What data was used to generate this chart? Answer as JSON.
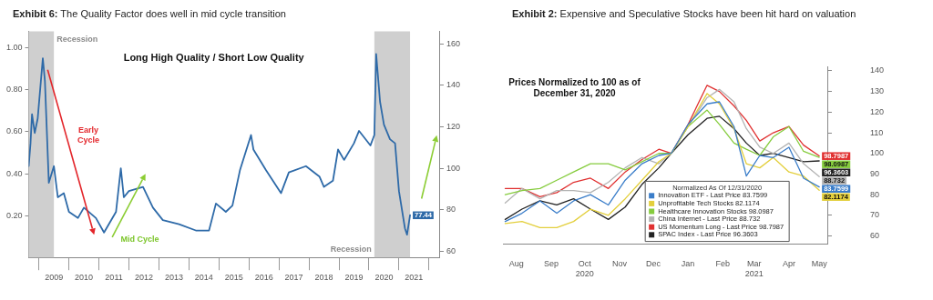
{
  "chart_data": [
    {
      "type": "line",
      "title": "Exhibit 6: The Quality Factor does well in mid cycle transition",
      "x": [
        2008.66,
        2008.72,
        2008.77,
        2008.86,
        2008.96,
        2009.13,
        2009.2,
        2009.33,
        2009.5,
        2009.63,
        2009.83,
        2010.0,
        2010.3,
        2010.5,
        2010.9,
        2011.17,
        2011.57,
        2011.73,
        2011.83,
        2012.0,
        2012.47,
        2012.8,
        2013.13,
        2013.67,
        2014.23,
        2014.67,
        2014.9,
        2015.23,
        2015.45,
        2015.7,
        2016.07,
        2016.15,
        2016.57,
        2017.07,
        2017.33,
        2017.9,
        2018.35,
        2018.5,
        2018.8,
        2018.97,
        2019.17,
        2019.5,
        2019.67,
        2020.05,
        2020.18,
        2020.24,
        2020.37,
        2020.5,
        2020.7,
        2020.87,
        2021.0,
        2021.2,
        2021.27,
        2021.37
      ],
      "series": [
        {
          "color": "#2e6aa8",
          "axis": "y2",
          "values": [
            101,
            112,
            126,
            117,
            124,
            153,
            142,
            93,
            101,
            86,
            88,
            79,
            76,
            81,
            76,
            69,
            79,
            100,
            86,
            89,
            91,
            81,
            75,
            73,
            70,
            70,
            83,
            79,
            82,
            99,
            116,
            109,
            99,
            88,
            98,
            101,
            96,
            91,
            94,
            109,
            104,
            112,
            118,
            111,
            116,
            155,
            132,
            121,
            114,
            112,
            89,
            71,
            68,
            77.44
          ],
          "value_labels": [
            null,
            null,
            null,
            null,
            null,
            null,
            null,
            null,
            null,
            null,
            null,
            null,
            null,
            null,
            null,
            null,
            null,
            null,
            null,
            null,
            null,
            null,
            null,
            null,
            null,
            null,
            null,
            null,
            null,
            null,
            null,
            null,
            null,
            null,
            null,
            null,
            null,
            null,
            null,
            null,
            null,
            null,
            null,
            null,
            null,
            null,
            null,
            null,
            null,
            null,
            null,
            null,
            null,
            "77.44"
          ]
        }
      ],
      "xlim": [
        2008.66,
        2022.37
      ],
      "xticks": [
        {
          "value": 2009,
          "label": null
        },
        {
          "value": 2009.5,
          "label": "2009"
        },
        {
          "value": 2010,
          "label": null
        },
        {
          "value": 2010.5,
          "label": "2010"
        },
        {
          "value": 2011,
          "label": null
        },
        {
          "value": 2011.5,
          "label": "2011"
        },
        {
          "value": 2012,
          "label": null
        },
        {
          "value": 2012.5,
          "label": "2012"
        },
        {
          "value": 2013,
          "label": null
        },
        {
          "value": 2013.5,
          "label": "2013"
        },
        {
          "value": 2014,
          "label": null
        },
        {
          "value": 2014.5,
          "label": "2014"
        },
        {
          "value": 2015,
          "label": null
        },
        {
          "value": 2015.5,
          "label": "2015"
        },
        {
          "value": 2016,
          "label": null
        },
        {
          "value": 2016.5,
          "label": "2016"
        },
        {
          "value": 2017,
          "label": null
        },
        {
          "value": 2017.5,
          "label": "2017"
        },
        {
          "value": 2018,
          "label": null
        },
        {
          "value": 2018.5,
          "label": "2018"
        },
        {
          "value": 2019,
          "label": null
        },
        {
          "value": 2019.5,
          "label": "2019"
        },
        {
          "value": 2020,
          "label": null
        },
        {
          "value": 2020.5,
          "label": "2020"
        },
        {
          "value": 2021,
          "label": null
        },
        {
          "value": 2021.5,
          "label": "2021"
        },
        {
          "value": 2022,
          "label": null
        }
      ],
      "ylim": [
        0,
        1.08
      ],
      "yticks": [
        {
          "value": 0.2,
          "label": "0.20"
        },
        {
          "value": 0.4,
          "label": "0.40"
        },
        {
          "value": 0.6,
          "label": "0.60"
        },
        {
          "value": 0.8,
          "label": "0.80"
        },
        {
          "value": 1,
          "label": "1.00"
        }
      ],
      "y2lim": [
        57,
        166
      ],
      "y2ticks": [
        60,
        80,
        100,
        120,
        140,
        160
      ],
      "bands": [
        {
          "axis": "x",
          "from": 2008.66,
          "to": 2009.5,
          "label": "Recession",
          "color": "#cfcfcf"
        },
        {
          "axis": "x",
          "from": 2020.18,
          "to": 2021.37,
          "label": "Recession",
          "color": "#cfcfcf"
        }
      ],
      "annotations": [
        "Long High Quality / Short Low Quality",
        "Early Cycle",
        "Mid Cycle"
      ]
    },
    {
      "type": "line",
      "title": "Exhibit 2: Expensive and Speculative Stocks have been hit hard on valuation",
      "x": [
        "2020-08-05",
        "2020-08-20",
        "2020-09-05",
        "2020-09-20",
        "2020-10-05",
        "2020-10-20",
        "2020-11-05",
        "2020-11-20",
        "2020-12-05",
        "2020-12-20",
        "2020-12-31",
        "2021-01-15",
        "2021-02-01",
        "2021-02-12",
        "2021-02-25",
        "2021-03-08",
        "2021-03-20",
        "2021-04-01",
        "2021-04-15",
        "2021-04-28",
        "2021-05-12"
      ],
      "series": [
        {
          "name": "Innovation ETF - Last Price 83.7599",
          "color": "#3a7dc9",
          "axis": "y2",
          "values": [
            67,
            71,
            77,
            71,
            77,
            80,
            75,
            87,
            95,
            99,
            100,
            114,
            124,
            125,
            113,
            89,
            99,
            98,
            103,
            88,
            83.7599
          ],
          "value_labels": [
            null,
            null,
            null,
            null,
            null,
            null,
            null,
            null,
            null,
            null,
            null,
            null,
            null,
            null,
            null,
            null,
            null,
            null,
            null,
            null,
            "83.7599"
          ]
        },
        {
          "name": "Unprofitable Tech Stocks 82.1174",
          "color": "#e3cf3c",
          "axis": "y2",
          "values": [
            66,
            67,
            64,
            64,
            67,
            73,
            70,
            78,
            87,
            96,
            100,
            113,
            129,
            124,
            112,
            95,
            93,
            98,
            91,
            89,
            82.1174
          ],
          "value_labels": [
            null,
            null,
            null,
            null,
            null,
            null,
            null,
            null,
            null,
            null,
            null,
            null,
            null,
            null,
            null,
            null,
            null,
            null,
            null,
            null,
            "82.1174"
          ]
        },
        {
          "name": "Healthcare Innovation Stocks 98.0987",
          "color": "#86cc3e",
          "axis": "y2",
          "values": [
            80,
            82,
            83,
            87,
            91,
            95,
            95,
            92,
            96,
            100,
            100,
            113,
            121,
            114,
            105,
            102,
            99,
            108,
            113,
            101,
            98.0987
          ],
          "value_labels": [
            null,
            null,
            null,
            null,
            null,
            null,
            null,
            null,
            null,
            null,
            null,
            null,
            null,
            null,
            null,
            null,
            null,
            null,
            null,
            null,
            "98.0987"
          ]
        },
        {
          "name": "China Internet - Last Price 88.732",
          "color": "#b3b3b3",
          "axis": "y2",
          "values": [
            76,
            83,
            78,
            82,
            82,
            81,
            86,
            93,
            98,
            95,
            100,
            113,
            127,
            131,
            125,
            112,
            103,
            100,
            105,
            95,
            88.732
          ],
          "value_labels": [
            null,
            null,
            null,
            null,
            null,
            null,
            null,
            null,
            null,
            null,
            null,
            null,
            null,
            null,
            null,
            null,
            null,
            null,
            null,
            null,
            "88.732"
          ]
        },
        {
          "name": "US Momentum Long - Last Price 98.7987",
          "color": "#e03030",
          "axis": "y2",
          "values": [
            83,
            83,
            79,
            81,
            86,
            88,
            83,
            91,
            97,
            102,
            100,
            114,
            133,
            130,
            123,
            116,
            106,
            110,
            113,
            104,
            98.7987
          ],
          "value_labels": [
            null,
            null,
            null,
            null,
            null,
            null,
            null,
            null,
            null,
            null,
            null,
            null,
            null,
            null,
            null,
            null,
            null,
            null,
            null,
            null,
            "98.7987"
          ]
        },
        {
          "name": "SPAC Index - Last Price 96.3603",
          "color": "#222222",
          "axis": "y2",
          "values": [
            68,
            73,
            77,
            75,
            78,
            73,
            68,
            74,
            85,
            93,
            100,
            109,
            117,
            118,
            112,
            105,
            99,
            100,
            98,
            96,
            96.3603
          ],
          "value_labels": [
            null,
            null,
            null,
            null,
            null,
            null,
            null,
            null,
            null,
            null,
            null,
            null,
            null,
            null,
            null,
            null,
            null,
            null,
            null,
            null,
            "96.3603"
          ]
        }
      ],
      "xlim": [
        "2020-08-03",
        "2021-05-20"
      ],
      "xticks": [
        {
          "value": "2020-08-15",
          "label": "Aug"
        },
        {
          "value": "2020-09-15",
          "label": "Sep"
        },
        {
          "value": "2020-10-15",
          "label": "Oct 2020"
        },
        {
          "value": "2020-11-15",
          "label": "Nov"
        },
        {
          "value": "2020-12-15",
          "label": "Dec"
        },
        {
          "value": "2021-01-15",
          "label": "Jan"
        },
        {
          "value": "2021-02-15",
          "label": "Feb"
        },
        {
          "value": "2021-03-15",
          "label": "Mar 2021"
        },
        {
          "value": "2021-04-15",
          "label": "Apr"
        },
        {
          "value": "2021-05-12",
          "label": "May"
        }
      ],
      "y2lim": [
        56,
        142
      ],
      "y2ticks": [
        60,
        70,
        80,
        90,
        100,
        110,
        120,
        130,
        140
      ],
      "legend": "bottom right",
      "legend_title": "Normalized As Of 12/31/2020",
      "annotations": [
        "Prices Normalized to 100 as of December 31, 2020"
      ]
    }
  ]
}
